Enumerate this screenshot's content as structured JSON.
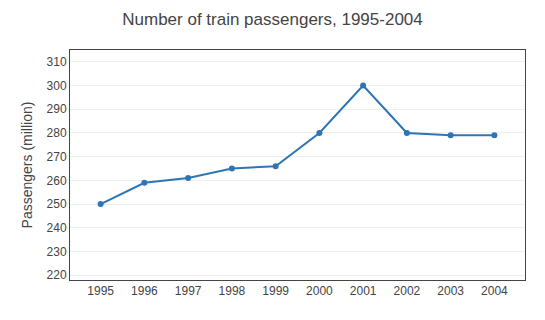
{
  "chart_data": {
    "type": "line",
    "title": "Number of train passengers, 1995-2004",
    "y_label": "Passengers (million)",
    "x": [
      1995,
      1996,
      1997,
      1998,
      1999,
      2000,
      2001,
      2002,
      2003,
      2004
    ],
    "values": [
      250,
      259,
      261,
      265,
      266,
      280,
      300,
      280,
      279,
      279
    ],
    "color": "#2E75B6",
    "marker": "circle",
    "xlim": [
      1994.3,
      2004.7
    ],
    "xticks": [
      1995,
      1996,
      1997,
      1998,
      1999,
      2000,
      2001,
      2002,
      2003,
      2004
    ],
    "ylim": [
      218,
      315
    ],
    "yticks": [
      220,
      230,
      240,
      250,
      260,
      270,
      280,
      290,
      300,
      310
    ],
    "grid": "y"
  }
}
